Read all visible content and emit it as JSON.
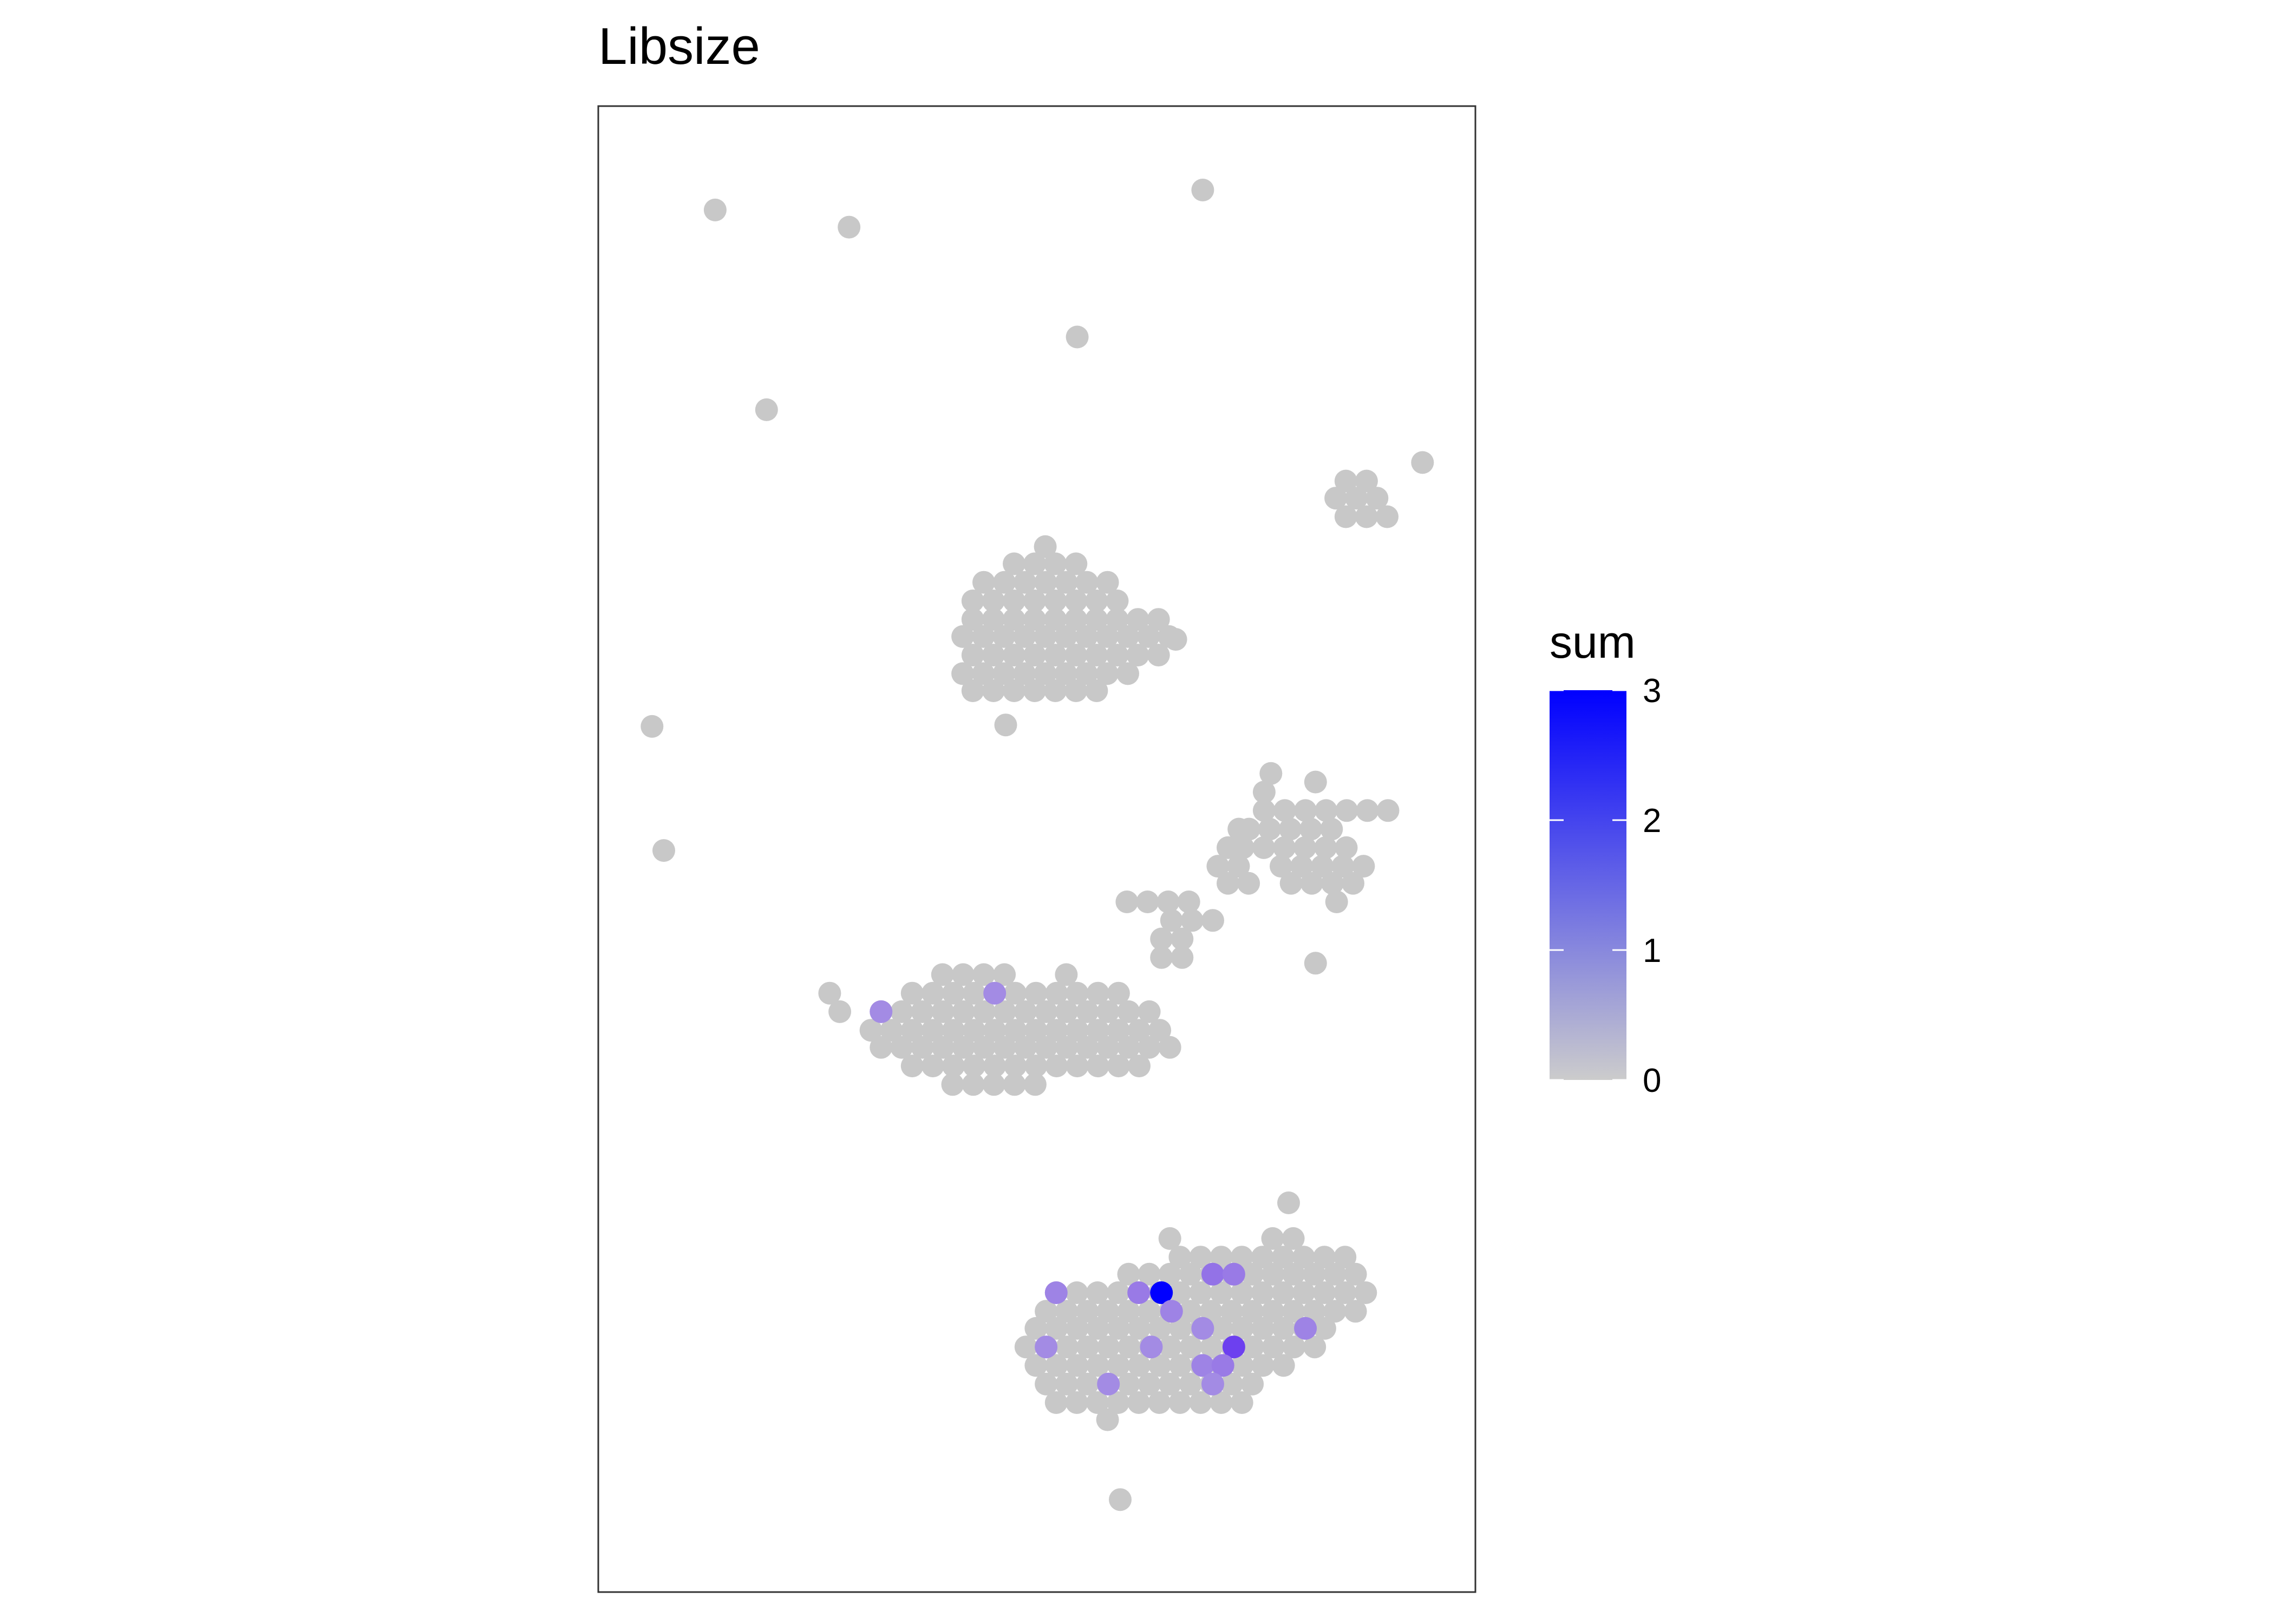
{
  "chart_data": {
    "type": "scatter",
    "title": "Libsize",
    "xlabel": "",
    "ylabel": "",
    "axes_visible": false,
    "grid": false,
    "panel_border": true,
    "legend": {
      "title": "sum",
      "placement": "right",
      "ticks": [
        "0",
        "1",
        "2",
        "3"
      ],
      "range": [
        0,
        3
      ],
      "low_color": "#cccccc",
      "high_color": "#0000ff"
    },
    "points_zero_color": "#c8c8c8",
    "scattered_points": [
      {
        "x": 0.118,
        "y": 0.948,
        "value": 0
      },
      {
        "x": 0.277,
        "y": 0.936,
        "value": 0
      },
      {
        "x": 0.697,
        "y": 0.962,
        "value": 0
      },
      {
        "x": 0.548,
        "y": 0.859,
        "value": 0
      },
      {
        "x": 0.179,
        "y": 0.808,
        "value": 0
      },
      {
        "x": 0.958,
        "y": 0.771,
        "value": 0
      },
      {
        "x": 0.043,
        "y": 0.586,
        "value": 0
      },
      {
        "x": 0.057,
        "y": 0.499,
        "value": 0
      },
      {
        "x": 0.463,
        "y": 0.587,
        "value": 0
      },
      {
        "x": 0.665,
        "y": 0.647,
        "value": 0
      },
      {
        "x": 0.831,
        "y": 0.547,
        "value": 0
      },
      {
        "x": 0.831,
        "y": 0.42,
        "value": 0
      },
      {
        "x": 0.799,
        "y": 0.252,
        "value": 0
      },
      {
        "x": 0.599,
        "y": 0.044,
        "value": 0
      }
    ],
    "clusters": [
      {
        "name": "upper-cluster",
        "rows": [
          {
            "y": 0.712,
            "x_start": 0.51,
            "count": 1,
            "spacing": 0.0245
          },
          {
            "y": 0.7,
            "x_start": 0.473,
            "count": 4,
            "spacing": 0.0245
          },
          {
            "y": 0.687,
            "x_start": 0.437,
            "count": 7,
            "spacing": 0.0245
          },
          {
            "y": 0.674,
            "x_start": 0.424,
            "count": 8,
            "spacing": 0.0245
          },
          {
            "y": 0.661,
            "x_start": 0.424,
            "count": 10,
            "spacing": 0.0245
          },
          {
            "y": 0.649,
            "x_start": 0.412,
            "count": 11,
            "spacing": 0.0245
          },
          {
            "y": 0.636,
            "x_start": 0.424,
            "count": 10,
            "spacing": 0.0245
          },
          {
            "y": 0.623,
            "x_start": 0.412,
            "count": 9,
            "spacing": 0.0245
          },
          {
            "y": 0.611,
            "x_start": 0.424,
            "count": 7,
            "spacing": 0.0245
          }
        ],
        "highlights": []
      },
      {
        "name": "small-right-cluster",
        "rows": [
          {
            "y": 0.758,
            "x_start": 0.867,
            "count": 2,
            "spacing": 0.0245
          },
          {
            "y": 0.746,
            "x_start": 0.855,
            "count": 3,
            "spacing": 0.0245
          },
          {
            "y": 0.733,
            "x_start": 0.867,
            "count": 3,
            "spacing": 0.0245
          }
        ],
        "highlights": []
      },
      {
        "name": "middle-right-cluster",
        "rows": [
          {
            "y": 0.553,
            "x_start": 0.778,
            "count": 1,
            "spacing": 0.0245
          },
          {
            "y": 0.54,
            "x_start": 0.77,
            "count": 1,
            "spacing": 0.0245
          },
          {
            "y": 0.527,
            "x_start": 0.77,
            "count": 7,
            "spacing": 0.0245
          },
          {
            "y": 0.514,
            "x_start": 0.752,
            "count": 5,
            "spacing": 0.0245
          },
          {
            "y": 0.501,
            "x_start": 0.745,
            "count": 6,
            "spacing": 0.0245
          },
          {
            "y": 0.488,
            "x_start": 0.79,
            "count": 5,
            "spacing": 0.0245
          },
          {
            "y": 0.476,
            "x_start": 0.802,
            "count": 4,
            "spacing": 0.0245
          },
          {
            "y": 0.463,
            "x_start": 0.856,
            "count": 1,
            "spacing": 0.0245
          }
        ],
        "highlights": []
      },
      {
        "name": "diagonal-strand",
        "rows": [
          {
            "y": 0.514,
            "x_start": 0.74,
            "count": 1,
            "spacing": 0.0245
          },
          {
            "y": 0.501,
            "x_start": 0.727,
            "count": 1,
            "spacing": 0.0245
          },
          {
            "y": 0.488,
            "x_start": 0.715,
            "count": 2,
            "spacing": 0.0245
          },
          {
            "y": 0.476,
            "x_start": 0.727,
            "count": 2,
            "spacing": 0.0245
          },
          {
            "y": 0.463,
            "x_start": 0.607,
            "count": 4,
            "spacing": 0.0245
          },
          {
            "y": 0.45,
            "x_start": 0.66,
            "count": 3,
            "spacing": 0.0245
          },
          {
            "y": 0.437,
            "x_start": 0.648,
            "count": 2,
            "spacing": 0.0245
          },
          {
            "y": 0.424,
            "x_start": 0.648,
            "count": 2,
            "spacing": 0.0245
          }
        ],
        "highlights": []
      },
      {
        "name": "left-cluster",
        "rows": [
          {
            "y": 0.412,
            "x_start": 0.388,
            "count": 4,
            "spacing": 0.0245
          },
          {
            "y": 0.412,
            "x_start": 0.535,
            "count": 1,
            "spacing": 0.0245
          },
          {
            "y": 0.399,
            "x_start": 0.254,
            "count": 1,
            "spacing": 0.0245
          },
          {
            "y": 0.399,
            "x_start": 0.352,
            "count": 11,
            "spacing": 0.0245
          },
          {
            "y": 0.386,
            "x_start": 0.266,
            "count": 1,
            "spacing": 0.0245
          },
          {
            "y": 0.386,
            "x_start": 0.315,
            "count": 14,
            "spacing": 0.0245
          },
          {
            "y": 0.373,
            "x_start": 0.303,
            "count": 15,
            "spacing": 0.0245
          },
          {
            "y": 0.361,
            "x_start": 0.315,
            "count": 15,
            "spacing": 0.0245
          },
          {
            "y": 0.348,
            "x_start": 0.352,
            "count": 12,
            "spacing": 0.0245
          },
          {
            "y": 0.335,
            "x_start": 0.4,
            "count": 5,
            "spacing": 0.0245
          }
        ],
        "highlights": [
          {
            "x": 0.315,
            "y": 0.386,
            "value": 1.3
          },
          {
            "x": 0.45,
            "y": 0.399,
            "value": 1.3
          }
        ]
      },
      {
        "name": "bottom-cluster",
        "rows": [
          {
            "y": 0.227,
            "x_start": 0.658,
            "count": 1,
            "spacing": 0.0245
          },
          {
            "y": 0.227,
            "x_start": 0.78,
            "count": 2,
            "spacing": 0.0245
          },
          {
            "y": 0.214,
            "x_start": 0.67,
            "count": 6,
            "spacing": 0.0245
          },
          {
            "y": 0.214,
            "x_start": 0.817,
            "count": 3,
            "spacing": 0.0245
          },
          {
            "y": 0.202,
            "x_start": 0.609,
            "count": 12,
            "spacing": 0.0245
          },
          {
            "y": 0.189,
            "x_start": 0.523,
            "count": 16,
            "spacing": 0.0245
          },
          {
            "y": 0.176,
            "x_start": 0.511,
            "count": 16,
            "spacing": 0.0245
          },
          {
            "y": 0.164,
            "x_start": 0.499,
            "count": 15,
            "spacing": 0.0245
          },
          {
            "y": 0.151,
            "x_start": 0.487,
            "count": 15,
            "spacing": 0.0245
          },
          {
            "y": 0.138,
            "x_start": 0.499,
            "count": 13,
            "spacing": 0.0245
          },
          {
            "y": 0.125,
            "x_start": 0.511,
            "count": 11,
            "spacing": 0.0245
          },
          {
            "y": 0.112,
            "x_start": 0.523,
            "count": 10,
            "spacing": 0.0245
          },
          {
            "y": 0.1,
            "x_start": 0.584,
            "count": 1,
            "spacing": 0.0245
          }
        ],
        "highlights": [
          {
            "x": 0.523,
            "y": 0.189,
            "value": 1.4
          },
          {
            "x": 0.621,
            "y": 0.189,
            "value": 1.5
          },
          {
            "x": 0.648,
            "y": 0.189,
            "value": 3.0
          },
          {
            "x": 0.709,
            "y": 0.202,
            "value": 1.6
          },
          {
            "x": 0.734,
            "y": 0.202,
            "value": 1.5
          },
          {
            "x": 0.66,
            "y": 0.176,
            "value": 1.4
          },
          {
            "x": 0.697,
            "y": 0.164,
            "value": 1.3
          },
          {
            "x": 0.819,
            "y": 0.164,
            "value": 1.4
          },
          {
            "x": 0.511,
            "y": 0.151,
            "value": 1.3
          },
          {
            "x": 0.636,
            "y": 0.151,
            "value": 1.3
          },
          {
            "x": 0.734,
            "y": 0.151,
            "value": 2.2
          },
          {
            "x": 0.697,
            "y": 0.138,
            "value": 1.4
          },
          {
            "x": 0.721,
            "y": 0.138,
            "value": 1.5
          },
          {
            "x": 0.585,
            "y": 0.125,
            "value": 1.3
          },
          {
            "x": 0.709,
            "y": 0.125,
            "value": 1.3
          }
        ]
      }
    ]
  }
}
